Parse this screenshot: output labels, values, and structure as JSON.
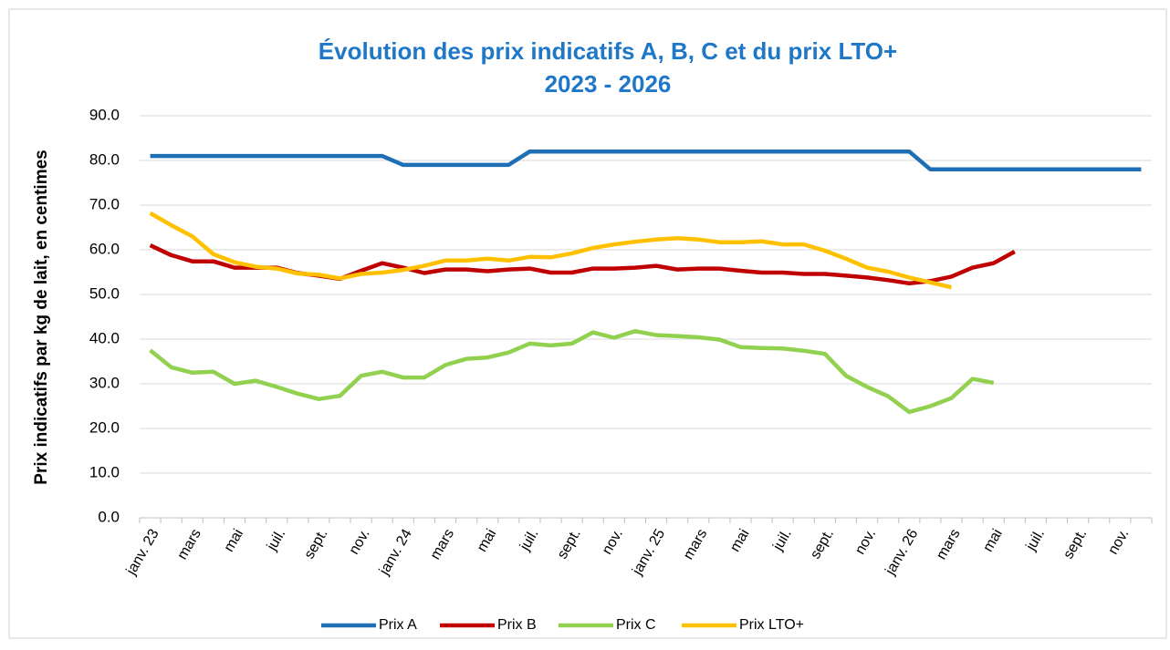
{
  "chart_data": {
    "type": "line",
    "title": "Évolution des prix indicatifs A, B, C et du prix LTO+",
    "subtitle": "2023 - 2026",
    "y_label": "Prix indicatifs par kg de lait, en centimes",
    "categories": [
      "janv. 23",
      null,
      "mars",
      null,
      "mai",
      null,
      "juil.",
      null,
      "sept.",
      null,
      "nov.",
      null,
      "janv. 24",
      null,
      "mars",
      null,
      "mai",
      null,
      "juil.",
      null,
      "sept.",
      null,
      "nov.",
      null,
      "janv. 25",
      null,
      "mars",
      null,
      "mai",
      null,
      "juil.",
      null,
      "sept.",
      null,
      "nov.",
      null,
      "janv. 26",
      null,
      "mars",
      null,
      "mai",
      null,
      "juil.",
      null,
      "sept.",
      null,
      "nov.",
      null
    ],
    "ylim": [
      0,
      90
    ],
    "yticks": [
      {
        "value": 0,
        "label": "0.0"
      },
      {
        "value": 10,
        "label": "10.0"
      },
      {
        "value": 20,
        "label": "20.0"
      },
      {
        "value": 30,
        "label": "30.0"
      },
      {
        "value": 40,
        "label": "40.0"
      },
      {
        "value": 50,
        "label": "50.0"
      },
      {
        "value": 60,
        "label": "60.0"
      },
      {
        "value": 70,
        "label": "70.0"
      },
      {
        "value": 80,
        "label": "80.0"
      },
      {
        "value": 90,
        "label": "90.0"
      }
    ],
    "grid": true,
    "legend": "bottom",
    "series": [
      {
        "name": "Prix A",
        "color": "#1f6fb5",
        "values": [
          81,
          81,
          81,
          81,
          81,
          81,
          81,
          81,
          81,
          81,
          81,
          81,
          79,
          79,
          79,
          79,
          79,
          79,
          82,
          82,
          82,
          82,
          82,
          82,
          82,
          82,
          82,
          82,
          82,
          82,
          82,
          82,
          82,
          82,
          82,
          82,
          82,
          78,
          78,
          78,
          78,
          78,
          78,
          78,
          78,
          78,
          78,
          78
        ]
      },
      {
        "name": "Prix B",
        "color": "#c00000",
        "values": [
          61,
          58.8,
          57.4,
          57.4,
          56,
          56,
          56,
          54.8,
          54.2,
          53.5,
          55.3,
          57,
          56,
          54.8,
          55.6,
          55.6,
          55.2,
          55.6,
          55.8,
          54.9,
          54.9,
          55.8,
          55.8,
          56,
          56.4,
          55.6,
          55.8,
          55.8,
          55.3,
          54.9,
          54.9,
          54.6,
          54.6,
          54.2,
          53.8,
          53.2,
          52.5,
          53,
          54,
          56,
          57,
          59.6,
          null,
          null,
          null,
          null,
          null,
          null
        ]
      },
      {
        "name": "Prix C",
        "color": "#92d050",
        "values": [
          37.5,
          33.7,
          32.5,
          32.7,
          30,
          30.7,
          29.3,
          27.8,
          26.6,
          27.3,
          31.8,
          32.7,
          31.4,
          31.4,
          34.2,
          35.6,
          35.9,
          37,
          39,
          38.6,
          39,
          41.5,
          40.3,
          41.8,
          40.9,
          40.7,
          40.4,
          39.9,
          38.2,
          38,
          37.9,
          37.4,
          36.7,
          31.8,
          29.3,
          27.2,
          23.7,
          25,
          26.8,
          31.1,
          30.2,
          null,
          null,
          null,
          null,
          null,
          null,
          null
        ]
      },
      {
        "name": "Prix LTO+",
        "color": "#ffc000",
        "values": [
          68.2,
          65.5,
          63,
          59,
          57.2,
          56.2,
          55.8,
          54.7,
          54.4,
          53.6,
          54.6,
          54.9,
          55.5,
          56.4,
          57.6,
          57.6,
          58,
          57.6,
          58.4,
          58.3,
          59.2,
          60.4,
          61.2,
          61.8,
          62.3,
          62.6,
          62.3,
          61.7,
          61.7,
          61.9,
          61.2,
          61.2,
          59.8,
          58,
          56,
          55.1,
          53.8,
          52.7,
          51.6,
          null,
          null,
          null,
          null,
          null,
          null,
          null,
          null,
          null
        ]
      }
    ]
  }
}
